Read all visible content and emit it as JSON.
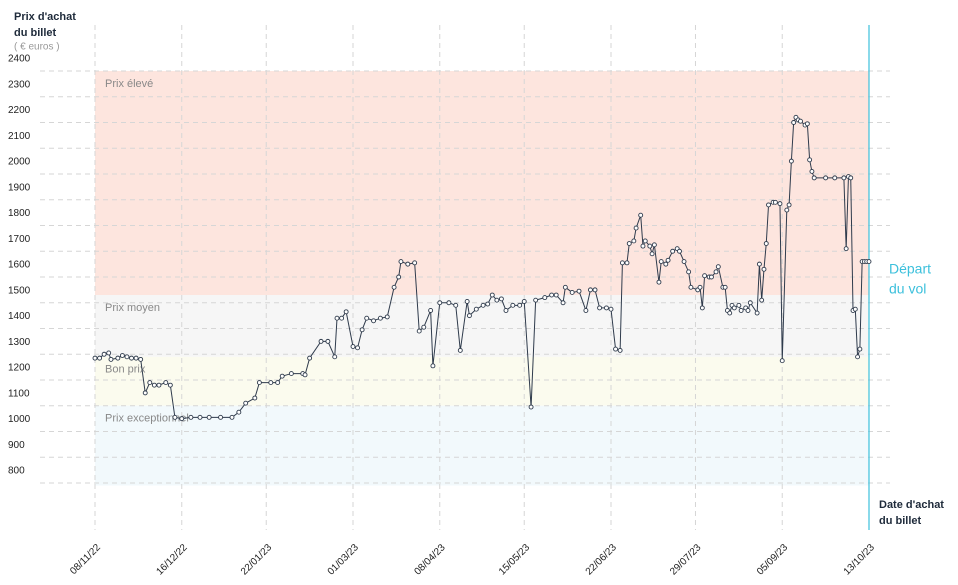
{
  "chart_data": {
    "type": "line",
    "ylabel": [
      "Prix d'achat",
      "du billet"
    ],
    "yunit": "( € euros )",
    "xlabel": [
      "Date d'achat",
      "du billet"
    ],
    "departure_label": [
      "Départ",
      "du vol"
    ],
    "departure_color": "#3cc0dc",
    "color": "#2f3b4c",
    "grid": true,
    "zones": [
      {
        "label": "Prix élevé",
        "from": 1530,
        "to": 2400,
        "color": "#fde5de"
      },
      {
        "label": "Prix moyen",
        "from": 1290,
        "to": 1530,
        "color": "#f6f6f6"
      },
      {
        "label": "Bon prix",
        "from": 1100,
        "to": 1290,
        "color": "#fbfbee"
      },
      {
        "label": "Prix exceptionnel",
        "from": 790,
        "to": 1100,
        "color": "#f2f9fc"
      }
    ],
    "xlim": [
      "08/11/22",
      "13/10/23"
    ],
    "xticks": [
      "08/11/22",
      "16/12/22",
      "22/01/23",
      "01/03/23",
      "08/04/23",
      "15/05/23",
      "22/06/23",
      "29/07/23",
      "05/09/23",
      "13/10/23"
    ],
    "ylim": [
      800,
      2400
    ],
    "yticks": [
      800,
      900,
      1000,
      1100,
      1200,
      1300,
      1400,
      1500,
      1600,
      1700,
      1800,
      1900,
      2000,
      2100,
      2200,
      2300,
      2400
    ],
    "x": [
      "08/11/22",
      "10/11/22",
      "12/11/22",
      "14/11/22",
      "15/11/22",
      "18/11/22",
      "20/11/22",
      "22/11/22",
      "24/11/22",
      "26/11/22",
      "28/11/22",
      "30/11/22",
      "02/12/22",
      "04/12/22",
      "06/12/22",
      "09/12/22",
      "11/12/22",
      "13/12/22",
      "16/12/22",
      "20/12/22",
      "24/12/22",
      "28/12/22",
      "02/01/23",
      "07/01/23",
      "10/01/23",
      "13/01/23",
      "17/01/23",
      "19/01/23",
      "24/01/23",
      "27/01/23",
      "29/01/23",
      "02/02/23",
      "07/02/23",
      "08/02/23",
      "10/02/23",
      "15/02/23",
      "18/02/23",
      "21/02/23",
      "22/02/23",
      "24/02/23",
      "26/02/23",
      "01/03/23",
      "03/03/23",
      "05/03/23",
      "07/03/23",
      "10/03/23",
      "13/03/23",
      "16/03/23",
      "19/03/23",
      "21/03/23",
      "22/03/23",
      "25/03/23",
      "28/03/23",
      "30/03/23",
      "01/04/23",
      "04/04/23",
      "05/04/23",
      "08/04/23",
      "12/04/23",
      "15/04/23",
      "17/04/23",
      "20/04/23",
      "21/04/23",
      "24/04/23",
      "27/04/23",
      "29/04/23",
      "01/05/23",
      "03/05/23",
      "05/05/23",
      "07/05/23",
      "10/05/23",
      "13/05/23",
      "15/05/23",
      "18/05/23",
      "20/05/23",
      "24/05/23",
      "27/05/23",
      "29/05/23",
      "01/06/23",
      "02/06/23",
      "05/06/23",
      "08/06/23",
      "11/06/23",
      "13/06/23",
      "15/06/23",
      "17/06/23",
      "20/06/23",
      "22/06/23",
      "24/06/23",
      "26/06/23",
      "27/06/23",
      "29/06/23",
      "30/06/23",
      "02/07/23",
      "03/07/23",
      "05/07/23",
      "06/07/23",
      "07/07/23",
      "09/07/23",
      "10/07/23",
      "11/07/23",
      "13/07/23",
      "14/07/23",
      "16/07/23",
      "17/07/23",
      "19/07/23",
      "21/07/23",
      "22/07/23",
      "24/07/23",
      "26/07/23",
      "27/07/23",
      "30/07/23",
      "31/07/23",
      "01/08/23",
      "02/08/23",
      "04/08/23",
      "05/08/23",
      "07/08/23",
      "08/08/23",
      "10/08/23",
      "11/08/23",
      "12/08/23",
      "13/08/23",
      "14/08/23",
      "15/08/23",
      "17/08/23",
      "18/08/23",
      "20/08/23",
      "21/08/23",
      "22/08/23",
      "25/08/23",
      "26/08/23",
      "27/08/23",
      "28/08/23",
      "29/08/23",
      "30/08/23",
      "01/09/23",
      "02/09/23",
      "04/09/23",
      "05/09/23",
      "07/09/23",
      "08/09/23",
      "09/09/23",
      "10/09/23",
      "11/09/23",
      "12/09/23",
      "13/09/23",
      "15/09/23",
      "16/09/23",
      "17/09/23",
      "18/09/23",
      "19/09/23",
      "24/09/23",
      "28/09/23",
      "02/10/23",
      "03/10/23",
      "04/10/23",
      "05/10/23",
      "06/10/23",
      "07/10/23",
      "08/10/23",
      "09/10/23",
      "10/10/23",
      "11/10/23",
      "12/10/23",
      "13/10/23"
    ],
    "values": [
      1285,
      1285,
      1300,
      1305,
      1280,
      1285,
      1295,
      1290,
      1285,
      1285,
      1280,
      1150,
      1190,
      1180,
      1180,
      1190,
      1180,
      1055,
      1050,
      1055,
      1055,
      1055,
      1055,
      1055,
      1075,
      1110,
      1130,
      1190,
      1190,
      1190,
      1215,
      1225,
      1225,
      1220,
      1285,
      1350,
      1350,
      1290,
      1440,
      1440,
      1465,
      1330,
      1325,
      1395,
      1440,
      1430,
      1440,
      1445,
      1560,
      1600,
      1660,
      1650,
      1655,
      1390,
      1405,
      1470,
      1255,
      1500,
      1500,
      1490,
      1315,
      1505,
      1450,
      1475,
      1490,
      1495,
      1530,
      1510,
      1515,
      1470,
      1490,
      1490,
      1505,
      1095,
      1510,
      1520,
      1530,
      1530,
      1500,
      1560,
      1540,
      1545,
      1470,
      1550,
      1550,
      1480,
      1480,
      1475,
      1320,
      1315,
      1655,
      1655,
      1730,
      1740,
      1790,
      1840,
      1720,
      1740,
      1720,
      1690,
      1725,
      1580,
      1660,
      1650,
      1665,
      1700,
      1710,
      1700,
      1660,
      1620,
      1560,
      1550,
      1560,
      1480,
      1605,
      1600,
      1600,
      1620,
      1640,
      1560,
      1560,
      1470,
      1460,
      1490,
      1480,
      1490,
      1470,
      1480,
      1470,
      1500,
      1460,
      1650,
      1510,
      1630,
      1730,
      1880,
      1890,
      1890,
      1885,
      1275,
      1860,
      1880,
      2050,
      2200,
      2220,
      2210,
      2205,
      2190,
      2195,
      2055,
      2010,
      1985,
      1985,
      1985,
      1985,
      1710,
      1990,
      1985,
      1470,
      1475,
      1290,
      1320,
      1660,
      1660,
      1660,
      1660
    ]
  }
}
